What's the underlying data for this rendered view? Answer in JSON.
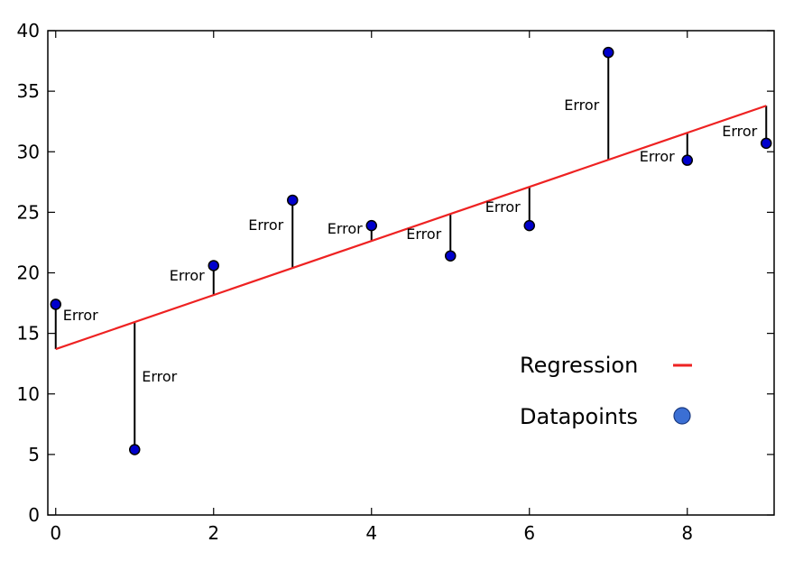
{
  "chart_data": {
    "type": "scatter",
    "xlim": [
      -0.1,
      9.1
    ],
    "ylim": [
      0,
      40
    ],
    "x_ticks": [
      0,
      2,
      4,
      6,
      8
    ],
    "y_ticks": [
      0,
      5,
      10,
      15,
      20,
      25,
      30,
      35,
      40
    ],
    "grid": false,
    "legend_placement": "bottom-right",
    "series": [
      {
        "name": "Datapoints",
        "x": [
          0,
          1,
          2,
          3,
          4,
          5,
          6,
          7,
          8,
          9
        ],
        "y": [
          17.4,
          5.4,
          20.6,
          26.0,
          23.9,
          21.4,
          23.9,
          38.2,
          29.3,
          30.7
        ],
        "color": "#0000cc"
      },
      {
        "name": "Regression",
        "x": [
          0,
          9
        ],
        "y": [
          13.7,
          33.8
        ],
        "color": "#ee2222"
      }
    ],
    "annotations": [
      {
        "text": "Error",
        "x": 0
      },
      {
        "text": "Error",
        "x": 1
      },
      {
        "text": "Error",
        "x": 2
      },
      {
        "text": "Error",
        "x": 3
      },
      {
        "text": "Error",
        "x": 4
      },
      {
        "text": "Error",
        "x": 5
      },
      {
        "text": "Error",
        "x": 6
      },
      {
        "text": "Error",
        "x": 7
      },
      {
        "text": "Error",
        "x": 8
      },
      {
        "text": "Error",
        "x": 9
      }
    ]
  }
}
